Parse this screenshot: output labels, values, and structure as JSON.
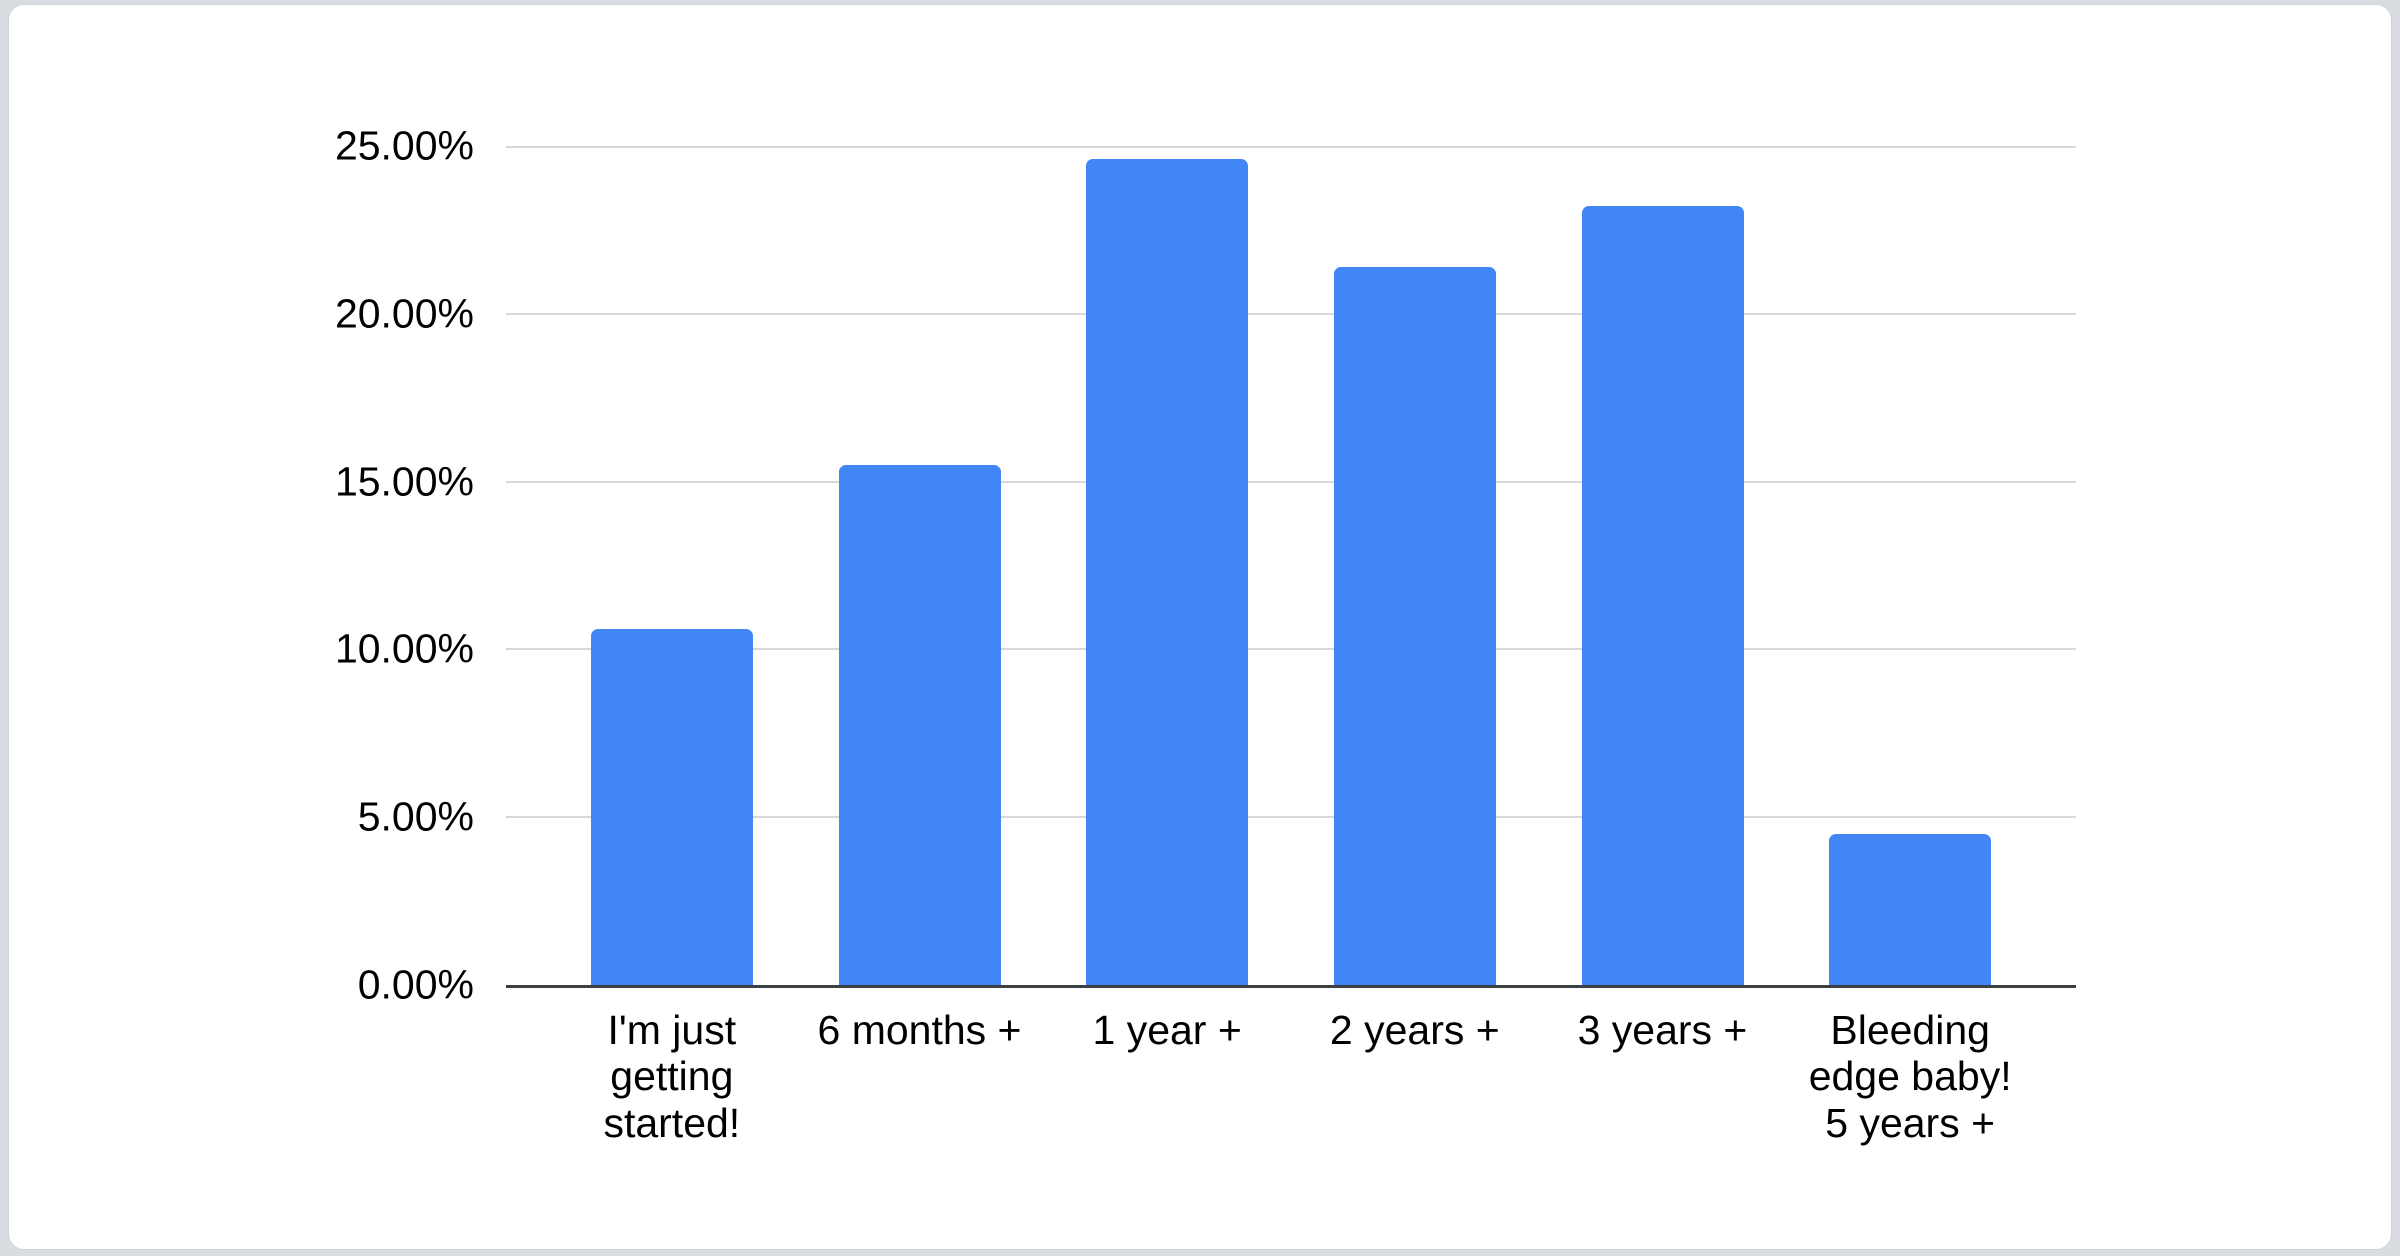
{
  "page": {
    "background_color": "#d9dce0",
    "card_background": "#ffffff",
    "card_border_color": "#cfd3d8"
  },
  "chart_data": {
    "type": "bar",
    "title": "",
    "xlabel": "",
    "ylabel": "",
    "categories": [
      "I'm just getting started!",
      "6 months +",
      "1 year +",
      "2 years +",
      "3 years +",
      "Bleeding edge baby! 5 years +"
    ],
    "category_display": [
      "I'm just\ngetting\nstarted!",
      "6 months +",
      "1 year +",
      "2 years +",
      "3 years +",
      "Bleeding\nedge baby!\n5 years +"
    ],
    "values": [
      10.6,
      15.5,
      24.6,
      21.4,
      23.2,
      4.5
    ],
    "value_unit": "%",
    "ylim": [
      0,
      25
    ],
    "y_ticks": [
      {
        "value": 0,
        "label": "0.00%"
      },
      {
        "value": 5,
        "label": "5.00%"
      },
      {
        "value": 10,
        "label": "10.00%"
      },
      {
        "value": 15,
        "label": "15.00%"
      },
      {
        "value": 20,
        "label": "20.00%"
      },
      {
        "value": 25,
        "label": "25.00%"
      }
    ],
    "grid": true,
    "legend": "none",
    "bar_color": "#4285f4",
    "gridline_color": "#d9d9d9",
    "baseline_color": "#3c4043",
    "text_color": "#000000"
  }
}
